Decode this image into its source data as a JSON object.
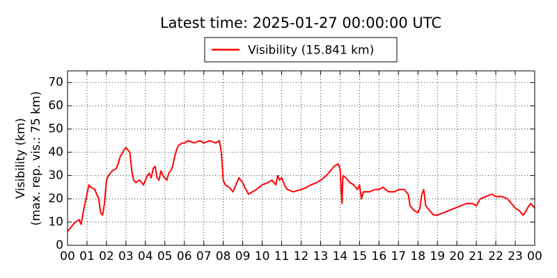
{
  "chart_data": {
    "type": "line",
    "title": "Latest time: 2025-01-27 00:00:00 UTC",
    "ylabel": [
      "Visibility (km)",
      "(max. rep. vis.: 75 km)"
    ],
    "legend": "top",
    "grid": true,
    "x": [
      0.0,
      0.2,
      0.4,
      0.6,
      0.7,
      0.8,
      0.9,
      1.0,
      1.1,
      1.2,
      1.4,
      1.5,
      1.6,
      1.7,
      1.8,
      1.9,
      2.0,
      2.1,
      2.3,
      2.5,
      2.6,
      2.7,
      2.9,
      3.0,
      3.1,
      3.2,
      3.3,
      3.4,
      3.5,
      3.7,
      3.9,
      4.0,
      4.1,
      4.2,
      4.3,
      4.4,
      4.5,
      4.6,
      4.7,
      4.8,
      4.9,
      5.0,
      5.1,
      5.2,
      5.3,
      5.4,
      5.5,
      5.6,
      5.7,
      5.9,
      6.0,
      6.2,
      6.5,
      6.8,
      7.0,
      7.3,
      7.6,
      7.8,
      7.9,
      8.0,
      8.1,
      8.3,
      8.5,
      8.6,
      8.7,
      8.8,
      9.0,
      9.1,
      9.3,
      9.5,
      9.7,
      10.0,
      10.3,
      10.5,
      10.7,
      10.8,
      10.9,
      11.0,
      11.1,
      11.2,
      11.3,
      11.6,
      12.0,
      12.3,
      12.5,
      12.8,
      13.0,
      13.3,
      13.5,
      13.7,
      13.9,
      14.0,
      14.1,
      14.15,
      14.3,
      14.5,
      14.7,
      14.9,
      15.0,
      15.1,
      15.2,
      15.5,
      15.8,
      16.0,
      16.2,
      16.5,
      16.8,
      17.0,
      17.3,
      17.5,
      17.6,
      17.8,
      18.0,
      18.1,
      18.2,
      18.3,
      18.4,
      18.6,
      18.8,
      19.0,
      19.3,
      19.6,
      19.9,
      20.2,
      20.5,
      20.8,
      21.0,
      21.2,
      21.5,
      21.8,
      22.0,
      22.3,
      22.6,
      22.8,
      23.0,
      23.2,
      23.4,
      23.5,
      23.7,
      23.8,
      24.0
    ],
    "series": [
      {
        "name": "Visibility (15.841 km)",
        "color": "#ff0000",
        "values": [
          6,
          8,
          10,
          11,
          9,
          14,
          18,
          22,
          26,
          25,
          24,
          22,
          20,
          14,
          13,
          18,
          28,
          30,
          32,
          33,
          35,
          38,
          41,
          42,
          41,
          40,
          32,
          28,
          27,
          28,
          26,
          28,
          30,
          31,
          29,
          33,
          34,
          29,
          28,
          32,
          30,
          29,
          28,
          31,
          32,
          34,
          38,
          41,
          43,
          44,
          44,
          45,
          44,
          45,
          44,
          45,
          44,
          45,
          40,
          28,
          26,
          25,
          23,
          25,
          27,
          29,
          27,
          25,
          22,
          23,
          24,
          26,
          27,
          28,
          26,
          30,
          28,
          29,
          27,
          25,
          24,
          23,
          24,
          25,
          26,
          27,
          28,
          30,
          32,
          34,
          35,
          33,
          18,
          30,
          29,
          27,
          26,
          24,
          26,
          20,
          23,
          23,
          24,
          24,
          25,
          23,
          23,
          24,
          24,
          22,
          17,
          15,
          14,
          16,
          22,
          24,
          17,
          15,
          13,
          13,
          14,
          15,
          16,
          17,
          18,
          18,
          17,
          20,
          21,
          22,
          21,
          21,
          20,
          18,
          16,
          15,
          13,
          14,
          17,
          18,
          16
        ]
      }
    ],
    "xlim": [
      0,
      24
    ],
    "xticks": [
      {
        "value": 0,
        "label": "00"
      },
      {
        "value": 1,
        "label": "01"
      },
      {
        "value": 2,
        "label": "02"
      },
      {
        "value": 3,
        "label": "03"
      },
      {
        "value": 4,
        "label": "04"
      },
      {
        "value": 5,
        "label": "05"
      },
      {
        "value": 6,
        "label": "06"
      },
      {
        "value": 7,
        "label": "07"
      },
      {
        "value": 8,
        "label": "08"
      },
      {
        "value": 9,
        "label": "09"
      },
      {
        "value": 10,
        "label": "10"
      },
      {
        "value": 11,
        "label": "11"
      },
      {
        "value": 12,
        "label": "12"
      },
      {
        "value": 13,
        "label": "13"
      },
      {
        "value": 14,
        "label": "14"
      },
      {
        "value": 15,
        "label": "15"
      },
      {
        "value": 16,
        "label": "16"
      },
      {
        "value": 17,
        "label": "17"
      },
      {
        "value": 18,
        "label": "18"
      },
      {
        "value": 19,
        "label": "19"
      },
      {
        "value": 20,
        "label": "20"
      },
      {
        "value": 21,
        "label": "21"
      },
      {
        "value": 22,
        "label": "22"
      },
      {
        "value": 23,
        "label": "23"
      },
      {
        "value": 24,
        "label": "00"
      }
    ],
    "ylim": [
      0,
      75
    ],
    "yticks": [
      0,
      10,
      20,
      30,
      40,
      50,
      60,
      70
    ]
  }
}
